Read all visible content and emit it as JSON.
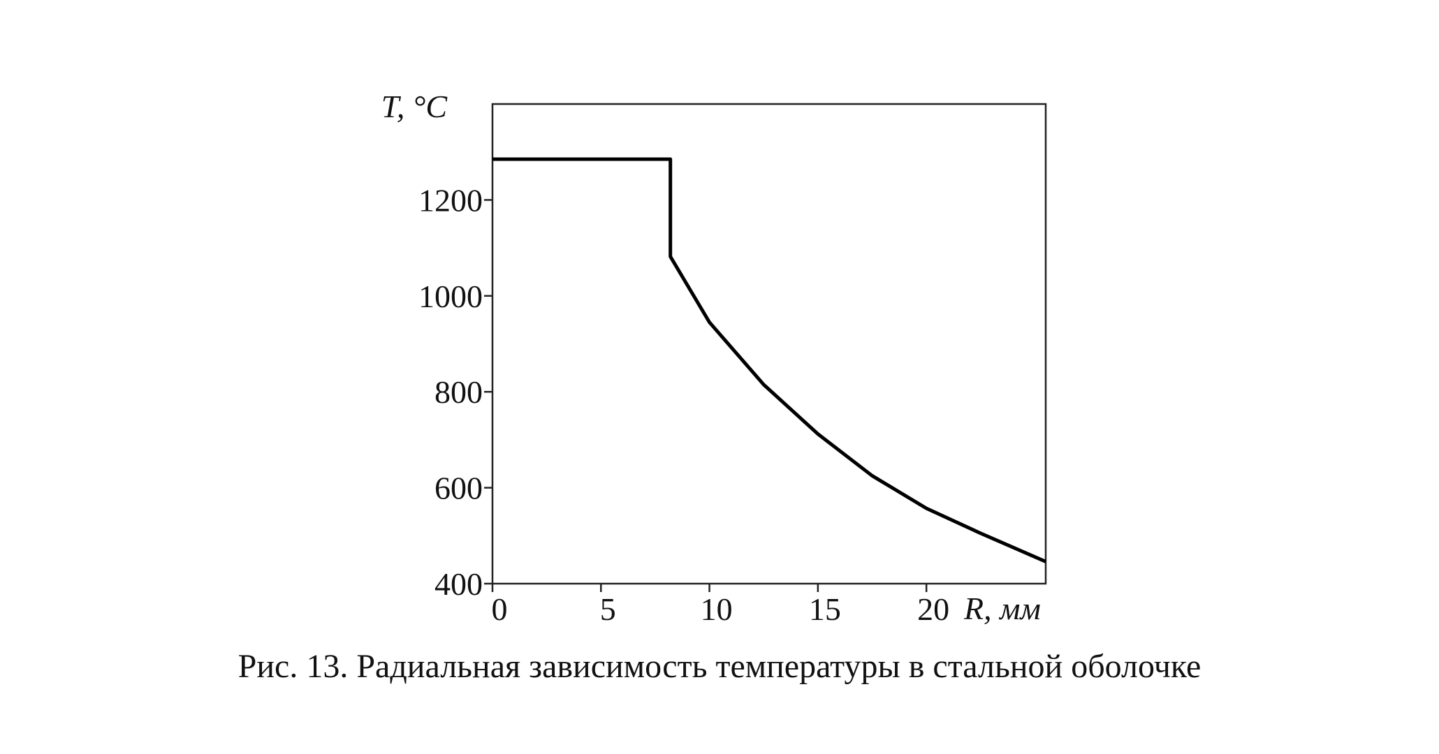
{
  "chart_data": {
    "type": "line",
    "x_label": "R, мм",
    "y_label": "T, °C",
    "caption": "Рис. 13. Радиальная зависимость температуры в стальной оболочке",
    "x": [
      0,
      8.2,
      8.2,
      10,
      12.5,
      15,
      17.5,
      20,
      22.5,
      25.5
    ],
    "series": [
      {
        "color": "#000000",
        "values": [
          1285,
          1285,
          1082,
          945,
          815,
          712,
          625,
          557,
          505,
          446
        ]
      }
    ],
    "xlim": [
      0,
      25.5
    ],
    "xticks": [
      0,
      5,
      10,
      15,
      20
    ],
    "ylim": [
      400,
      1400
    ],
    "yticks": [
      400,
      600,
      800,
      1000,
      1200
    ]
  }
}
